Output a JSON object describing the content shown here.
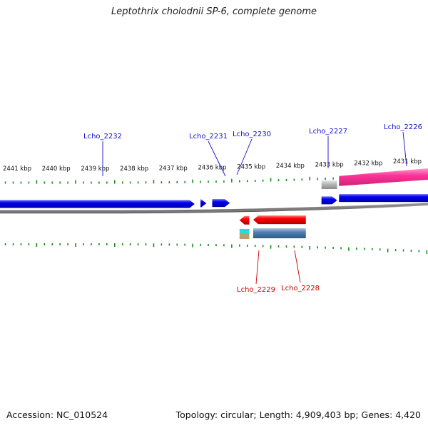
{
  "title": "Leptothrix cholodnii SP-6, complete genome",
  "accession": "Accession: NC_010524",
  "summary": "Topology: circular; Length: 4,909,403 bp; Genes: 4,420",
  "colors": {
    "backbone": "#808080",
    "forward_gene": "#0000ee",
    "reverse_gene": "#ff0000",
    "forward_label": "#1010cc",
    "reverse_label": "#cc0000",
    "tick": "#1a8a1a",
    "pink_feature": "#ff3399",
    "steel_feature": "#4f7fae",
    "grey_feature": "#b0b0b0",
    "cyan_feature": "#22dddd",
    "tan_feature": "#b8a070"
  },
  "kbp_labels": [
    {
      "kbp": 2441,
      "text": "2441 kbp"
    },
    {
      "kbp": 2440,
      "text": "2440 kbp"
    },
    {
      "kbp": 2439,
      "text": "2439 kbp"
    },
    {
      "kbp": 2438,
      "text": "2438 kbp"
    },
    {
      "kbp": 2437,
      "text": "2437 kbp"
    },
    {
      "kbp": 2436,
      "text": "2436 kbp"
    },
    {
      "kbp": 2435,
      "text": "2435 kbp"
    },
    {
      "kbp": 2434,
      "text": "2434 kbp"
    },
    {
      "kbp": 2433,
      "text": "2433 kbp"
    },
    {
      "kbp": 2432,
      "text": "2432 kbp"
    },
    {
      "kbp": 2431,
      "text": "2431 kbp"
    }
  ],
  "forward_genes": [
    {
      "name": "Lcho_2232",
      "start_kbp": 2442.1,
      "end_kbp": 2436.45
    },
    {
      "name": "Lcho_2231",
      "start_kbp": 2436.3,
      "end_kbp": 2436.15
    },
    {
      "name": "Lcho_2230",
      "start_kbp": 2436.0,
      "end_kbp": 2435.55
    },
    {
      "name": "Lcho_2227",
      "start_kbp": 2433.2,
      "end_kbp": 2432.8
    },
    {
      "name": "Lcho_2226",
      "start_kbp": 2432.75,
      "end_kbp": 2430.0
    }
  ],
  "reverse_genes": [
    {
      "name": "Lcho_2229",
      "start_kbp": 2435.3,
      "end_kbp": 2435.05
    },
    {
      "name": "Lcho_2228",
      "start_kbp": 2434.95,
      "end_kbp": 2433.6
    }
  ],
  "forward_labels": [
    {
      "text": "Lcho_2232",
      "kbp": 2439.0
    },
    {
      "text": "Lcho_2231",
      "kbp": 2435.9
    },
    {
      "text": "Lcho_2230",
      "kbp": 2435.6
    },
    {
      "text": "Lcho_2227",
      "kbp": 2433.0
    },
    {
      "text": "Lcho_2226",
      "kbp": 2431.0
    }
  ],
  "reverse_labels": [
    {
      "text": "Lcho_2229",
      "kbp": 2435.1
    },
    {
      "text": "Lcho_2228",
      "kbp": 2434.2
    }
  ]
}
